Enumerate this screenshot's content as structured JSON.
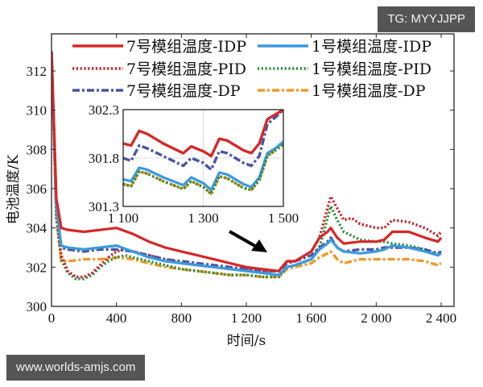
{
  "watermarks": {
    "top_right": "TG: MYYJJPP",
    "bottom_left": "www.worlds-amjs.com"
  },
  "chart_data": {
    "type": "line",
    "title": "",
    "xlabel": "时间/s",
    "ylabel": "电池温度/K",
    "xlim": [
      0,
      2400
    ],
    "ylim": [
      300,
      313
    ],
    "x_ticks": [
      0,
      400,
      800,
      1200,
      1600,
      2000,
      2400
    ],
    "x_tick_labels": [
      "0",
      "400",
      "800",
      "1 200",
      "1 600",
      "2 000",
      "2 400"
    ],
    "y_ticks": [
      300,
      302,
      304,
      306,
      308,
      310,
      312
    ],
    "y_tick_labels": [
      "300",
      "302",
      "304",
      "306",
      "308",
      "310",
      "312"
    ],
    "grid": false,
    "legend_position": "upper inside, 2 columns",
    "annotation": "arrow pointing from inset to region ~1 300–1 450 s",
    "series": [
      {
        "name": "7号模组温度-IDP",
        "color": "#d62728",
        "style": "solid",
        "x": [
          0,
          30,
          60,
          100,
          200,
          300,
          400,
          500,
          600,
          700,
          800,
          900,
          1000,
          1100,
          1200,
          1300,
          1400,
          1450,
          1500,
          1600,
          1650,
          1700,
          1720,
          1760,
          1800,
          1900,
          2000,
          2050,
          2100,
          2200,
          2300,
          2380,
          2400
        ],
        "y": [
          313.0,
          305.5,
          304.0,
          303.9,
          303.8,
          303.9,
          304.0,
          303.7,
          303.3,
          303.0,
          302.8,
          302.6,
          302.4,
          302.2,
          302.0,
          301.9,
          301.8,
          302.3,
          302.3,
          302.8,
          303.5,
          303.8,
          304.0,
          303.5,
          303.2,
          303.3,
          303.3,
          303.4,
          303.8,
          303.8,
          303.5,
          303.3,
          303.5
        ]
      },
      {
        "name": "1号模组温度-IDP",
        "color": "#3a9ae0",
        "style": "solid",
        "x": [
          0,
          30,
          60,
          100,
          200,
          300,
          400,
          500,
          600,
          700,
          800,
          900,
          1000,
          1100,
          1200,
          1300,
          1400,
          1450,
          1500,
          1600,
          1650,
          1700,
          1720,
          1760,
          1800,
          1900,
          2000,
          2050,
          2100,
          2200,
          2300,
          2380,
          2400
        ],
        "y": [
          313.0,
          305.0,
          303.1,
          303.0,
          302.9,
          303.0,
          303.1,
          302.8,
          302.5,
          302.3,
          302.2,
          302.1,
          302.0,
          301.9,
          301.8,
          301.7,
          301.6,
          302.0,
          302.1,
          302.4,
          302.9,
          303.2,
          303.4,
          303.0,
          302.8,
          302.7,
          302.8,
          302.9,
          303.1,
          303.0,
          302.8,
          302.6,
          302.7
        ]
      },
      {
        "name": "7号模组温度-PID",
        "color": "#c8202a",
        "style": "dotted",
        "x": [
          0,
          30,
          60,
          100,
          150,
          200,
          250,
          300,
          350,
          400,
          450,
          500,
          600,
          700,
          800,
          900,
          1000,
          1100,
          1200,
          1300,
          1400,
          1450,
          1500,
          1600,
          1650,
          1700,
          1720,
          1760,
          1800,
          1850,
          1900,
          2000,
          2050,
          2100,
          2200,
          2300,
          2380,
          2400
        ],
        "y": [
          313.0,
          305.0,
          302.6,
          301.8,
          301.5,
          301.5,
          301.7,
          302.1,
          302.5,
          302.8,
          302.9,
          302.8,
          302.6,
          302.4,
          302.2,
          302.1,
          302.0,
          301.9,
          301.9,
          301.8,
          301.8,
          302.3,
          302.3,
          302.8,
          303.5,
          305.0,
          305.6,
          305.0,
          304.4,
          304.5,
          304.2,
          304.0,
          304.0,
          304.4,
          304.3,
          304.0,
          303.6,
          303.8
        ]
      },
      {
        "name": "1号模组温度-PID",
        "color": "#2e8b3a",
        "style": "dotted",
        "x": [
          0,
          30,
          60,
          100,
          150,
          200,
          250,
          300,
          350,
          400,
          450,
          500,
          600,
          700,
          800,
          900,
          1000,
          1100,
          1200,
          1300,
          1400,
          1450,
          1500,
          1600,
          1650,
          1700,
          1720,
          1760,
          1800,
          1850,
          1900,
          2000,
          2050,
          2100,
          2200,
          2300,
          2380,
          2400
        ],
        "y": [
          313.0,
          304.5,
          302.4,
          301.7,
          301.4,
          301.4,
          301.6,
          302.0,
          302.3,
          302.5,
          302.6,
          302.5,
          302.3,
          302.1,
          301.9,
          301.8,
          301.7,
          301.6,
          301.6,
          301.5,
          301.5,
          302.0,
          302.1,
          302.4,
          303.0,
          304.5,
          305.1,
          304.4,
          303.8,
          303.6,
          303.4,
          303.3,
          303.3,
          303.2,
          303.1,
          302.9,
          302.6,
          302.8
        ]
      },
      {
        "name": "7号模组温度-DP",
        "color": "#4a55a2",
        "style": "dashdot",
        "x": [
          0,
          30,
          60,
          100,
          200,
          300,
          400,
          500,
          600,
          700,
          800,
          900,
          1000,
          1100,
          1200,
          1300,
          1400,
          1450,
          1500,
          1600,
          1650,
          1700,
          1720,
          1760,
          1800,
          1900,
          2000,
          2050,
          2100,
          2200,
          2300,
          2380,
          2400
        ],
        "y": [
          313.0,
          305.2,
          303.0,
          302.9,
          302.8,
          302.9,
          302.9,
          302.8,
          302.6,
          302.4,
          302.3,
          302.2,
          302.1,
          302.0,
          301.9,
          301.8,
          301.8,
          302.2,
          302.3,
          302.6,
          303.0,
          303.3,
          303.5,
          303.0,
          302.8,
          302.9,
          302.9,
          303.0,
          303.0,
          303.0,
          302.9,
          302.7,
          302.8
        ]
      },
      {
        "name": "1号模组温度-DP",
        "color": "#f09a2a",
        "style": "dashdot",
        "x": [
          0,
          30,
          60,
          100,
          200,
          300,
          400,
          500,
          600,
          700,
          800,
          900,
          1000,
          1100,
          1200,
          1300,
          1400,
          1450,
          1500,
          1600,
          1650,
          1700,
          1720,
          1760,
          1800,
          1900,
          2000,
          2050,
          2100,
          2200,
          2300,
          2380,
          2400
        ],
        "y": [
          313.0,
          304.5,
          302.3,
          302.3,
          302.4,
          302.4,
          302.5,
          302.4,
          302.2,
          302.0,
          301.9,
          301.8,
          301.7,
          301.6,
          301.6,
          301.5,
          301.5,
          301.9,
          302.0,
          302.2,
          302.5,
          302.7,
          302.8,
          302.4,
          302.2,
          302.4,
          302.4,
          302.4,
          302.4,
          302.4,
          302.3,
          302.1,
          302.2
        ]
      }
    ],
    "inset": {
      "xlim": [
        1100,
        1500
      ],
      "ylim": [
        301.3,
        302.3
      ],
      "x_ticks": [
        1100,
        1300,
        1500
      ],
      "x_tick_labels": [
        "1 100",
        "1 300",
        "1 500"
      ],
      "y_ticks": [
        301.3,
        301.8,
        302.3
      ],
      "y_tick_labels": [
        "301.3",
        "301.8",
        "302.3"
      ],
      "grid": true,
      "series": [
        {
          "name": "7号模组温度-IDP",
          "x": [
            1100,
            1120,
            1140,
            1160,
            1200,
            1250,
            1270,
            1300,
            1320,
            1340,
            1360,
            1400,
            1420,
            1440,
            1460,
            1480,
            1500
          ],
          "y": [
            301.95,
            301.93,
            302.08,
            302.05,
            301.95,
            301.85,
            301.92,
            301.87,
            301.82,
            302.0,
            301.98,
            301.88,
            301.85,
            301.95,
            302.2,
            302.25,
            302.3
          ]
        },
        {
          "name": "7号模组温度-PID",
          "x": [
            1100,
            1120,
            1140,
            1160,
            1200,
            1250,
            1270,
            1300,
            1320,
            1340,
            1360,
            1400,
            1420,
            1440,
            1460,
            1480,
            1500
          ],
          "y": [
            301.95,
            301.93,
            302.08,
            302.05,
            301.95,
            301.85,
            301.92,
            301.87,
            301.82,
            302.0,
            301.98,
            301.88,
            301.85,
            301.95,
            302.2,
            302.25,
            302.3
          ]
        },
        {
          "name": "7号模组温度-DP",
          "x": [
            1100,
            1120,
            1140,
            1160,
            1200,
            1250,
            1270,
            1300,
            1320,
            1340,
            1360,
            1400,
            1420,
            1440,
            1460,
            1480,
            1500
          ],
          "y": [
            301.8,
            301.77,
            301.93,
            301.9,
            301.82,
            301.72,
            301.8,
            301.75,
            301.68,
            301.87,
            301.85,
            301.75,
            301.72,
            301.82,
            302.15,
            302.22,
            302.3
          ]
        },
        {
          "name": "1号模组温度-IDP",
          "x": [
            1100,
            1120,
            1140,
            1160,
            1200,
            1250,
            1270,
            1300,
            1320,
            1340,
            1360,
            1400,
            1420,
            1440,
            1460,
            1480,
            1500
          ],
          "y": [
            301.58,
            301.56,
            301.7,
            301.68,
            301.6,
            301.52,
            301.6,
            301.54,
            301.47,
            301.65,
            301.63,
            301.53,
            301.5,
            301.6,
            301.85,
            301.9,
            301.97
          ]
        },
        {
          "name": "1号模组温度-PID",
          "x": [
            1100,
            1120,
            1140,
            1160,
            1200,
            1250,
            1270,
            1300,
            1320,
            1340,
            1360,
            1400,
            1420,
            1440,
            1460,
            1480,
            1500
          ],
          "y": [
            301.53,
            301.51,
            301.66,
            301.64,
            301.56,
            301.48,
            301.56,
            301.5,
            301.43,
            301.61,
            301.59,
            301.49,
            301.47,
            301.57,
            301.82,
            301.88,
            301.94
          ]
        },
        {
          "name": "1号模组温度-DP",
          "x": [
            1100,
            1120,
            1140,
            1160,
            1200,
            1250,
            1270,
            1300,
            1320,
            1340,
            1360,
            1400,
            1420,
            1440,
            1460,
            1480,
            1500
          ],
          "y": [
            301.53,
            301.51,
            301.66,
            301.64,
            301.56,
            301.48,
            301.56,
            301.5,
            301.43,
            301.61,
            301.59,
            301.49,
            301.47,
            301.57,
            301.82,
            301.88,
            301.94
          ]
        }
      ]
    }
  },
  "legend": [
    {
      "label": "7号模组温度-IDP",
      "color": "#d62728",
      "style": "solid"
    },
    {
      "label": "1号模组温度-IDP",
      "color": "#3a9ae0",
      "style": "solid"
    },
    {
      "label": "7号模组温度-PID",
      "color": "#c8202a",
      "style": "dotted"
    },
    {
      "label": "1号模组温度-PID",
      "color": "#2e8b3a",
      "style": "dotted"
    },
    {
      "label": "7号模组温度-DP",
      "color": "#4a55a2",
      "style": "dashdot"
    },
    {
      "label": "1号模组温度-DP",
      "color": "#f09a2a",
      "style": "dashdot"
    }
  ]
}
